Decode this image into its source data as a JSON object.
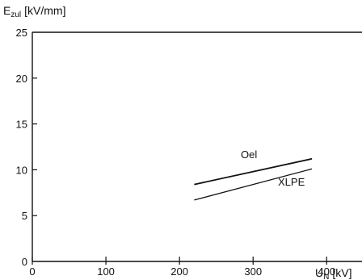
{
  "chart_data": {
    "type": "line",
    "x": [
      220,
      380
    ],
    "xlim": [
      0,
      448
    ],
    "ylim": [
      0,
      25
    ],
    "xticks": [
      0,
      100,
      200,
      300,
      400
    ],
    "yticks": [
      0,
      5,
      10,
      15,
      20,
      25
    ],
    "grid": false,
    "ylabel": {
      "main": "E",
      "sub": "zul",
      "unit": "[kV/mm]"
    },
    "xlabel": {
      "main": "U",
      "sub": "N",
      "unit": "[kV]"
    },
    "series": [
      {
        "name": "Oel",
        "x": [
          220,
          380
        ],
        "values": [
          8.4,
          11.2
        ]
      },
      {
        "name": "XLPE",
        "x": [
          220,
          380
        ],
        "values": [
          6.7,
          10.1
        ]
      }
    ],
    "colors": {
      "axis": "#111111",
      "line": "#111111"
    }
  }
}
